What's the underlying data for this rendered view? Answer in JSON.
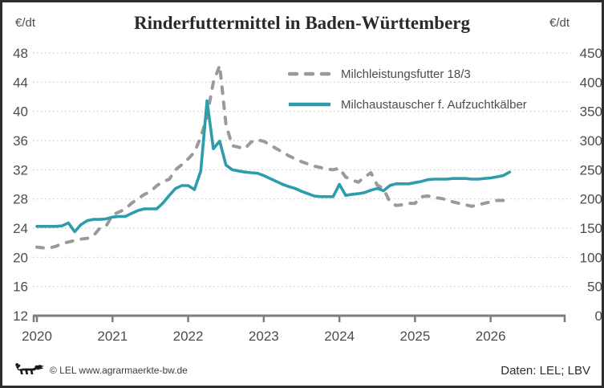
{
  "title": "Rinderfuttermittel in Baden-Württemberg",
  "axis_units": {
    "left": "€/dt",
    "right": "€/dt"
  },
  "legend": {
    "items": [
      {
        "label": "Milchleistungsfutter 18/3",
        "style": "dashed",
        "color": "#9a9a9a"
      },
      {
        "label": "Milchaustauscher f. Aufzuchtkälber",
        "style": "solid",
        "color": "#2d9cab"
      }
    ]
  },
  "footer": {
    "logo": "baden-wuerttemberg-lion",
    "copyright": "© LEL www.agrarmaerkte-bw.de",
    "source": "Daten: LEL; LBV"
  },
  "colors": {
    "series_dashed": "#9a9a9a",
    "series_solid": "#2d9cab",
    "gridline": "#c9c9c9",
    "axis_line": "#7d7d7d",
    "tick_label": "#4d4d4d",
    "title": "#2a2a2a"
  },
  "chart_data": {
    "type": "line",
    "title": "Rinderfuttermittel in Baden-Württemberg",
    "x_unit": "month",
    "x_start": "2020-01",
    "x_tick_labels": [
      "2020",
      "2021",
      "2022",
      "2023",
      "2024",
      "2025",
      "2026"
    ],
    "left_axis": {
      "unit": "€/dt",
      "ticks": [
        48,
        44,
        40,
        36,
        32,
        28,
        24,
        20,
        16,
        12
      ],
      "range": [
        12,
        48
      ]
    },
    "right_axis": {
      "unit": "€/dt",
      "ticks": [
        450,
        400,
        350,
        300,
        250,
        200,
        150,
        100,
        50,
        0
      ],
      "range": [
        0,
        450
      ]
    },
    "grid": "horizontal-dotted",
    "legend_position": "top-right-inside",
    "series": [
      {
        "name": "Milchleistungsfutter 18/3",
        "axis": "left",
        "line_style": "dashed",
        "color": "#9a9a9a",
        "values": [
          21.4,
          21.3,
          21.3,
          21.5,
          21.9,
          22.1,
          22.3,
          22.5,
          22.6,
          23.0,
          24.0,
          24.3,
          25.8,
          26.2,
          26.6,
          27.4,
          28.0,
          28.6,
          29.0,
          29.8,
          30.4,
          30.7,
          32.0,
          32.7,
          33.5,
          34.4,
          36.5,
          39.3,
          44.0,
          46.3,
          38.2,
          35.3,
          35.1,
          34.9,
          35.8,
          36.1,
          35.9,
          35.4,
          34.9,
          34.4,
          33.9,
          33.5,
          33.1,
          32.8,
          32.5,
          32.3,
          32.1,
          32.0,
          32.2,
          31.0,
          30.6,
          30.3,
          31.0,
          31.6,
          29.9,
          29.4,
          27.6,
          27.1,
          27.2,
          27.4,
          27.4,
          28.3,
          28.4,
          28.2,
          28.1,
          27.9,
          27.6,
          27.4,
          27.2,
          27.0,
          27.2,
          27.4,
          27.6,
          27.8,
          27.8
        ]
      },
      {
        "name": "Milchaustauscher f. Aufzuchtkälber",
        "axis": "right",
        "line_style": "solid",
        "color": "#2d9cab",
        "values": [
          153,
          153,
          153,
          153,
          154,
          159,
          144,
          156,
          163,
          165,
          165,
          166,
          169,
          170,
          170,
          175,
          180,
          183,
          183,
          183,
          193,
          206,
          218,
          223,
          223,
          216,
          248,
          368,
          286,
          299,
          258,
          250,
          248,
          246,
          245,
          244,
          240,
          235,
          230,
          225,
          221,
          218,
          213,
          209,
          205,
          204,
          204,
          204,
          225,
          206,
          208,
          209,
          211,
          215,
          218,
          214,
          223,
          226,
          226,
          226,
          228,
          230,
          233,
          234,
          234,
          234,
          235,
          235,
          235,
          234,
          234,
          235,
          236,
          238,
          240,
          246
        ]
      }
    ]
  }
}
